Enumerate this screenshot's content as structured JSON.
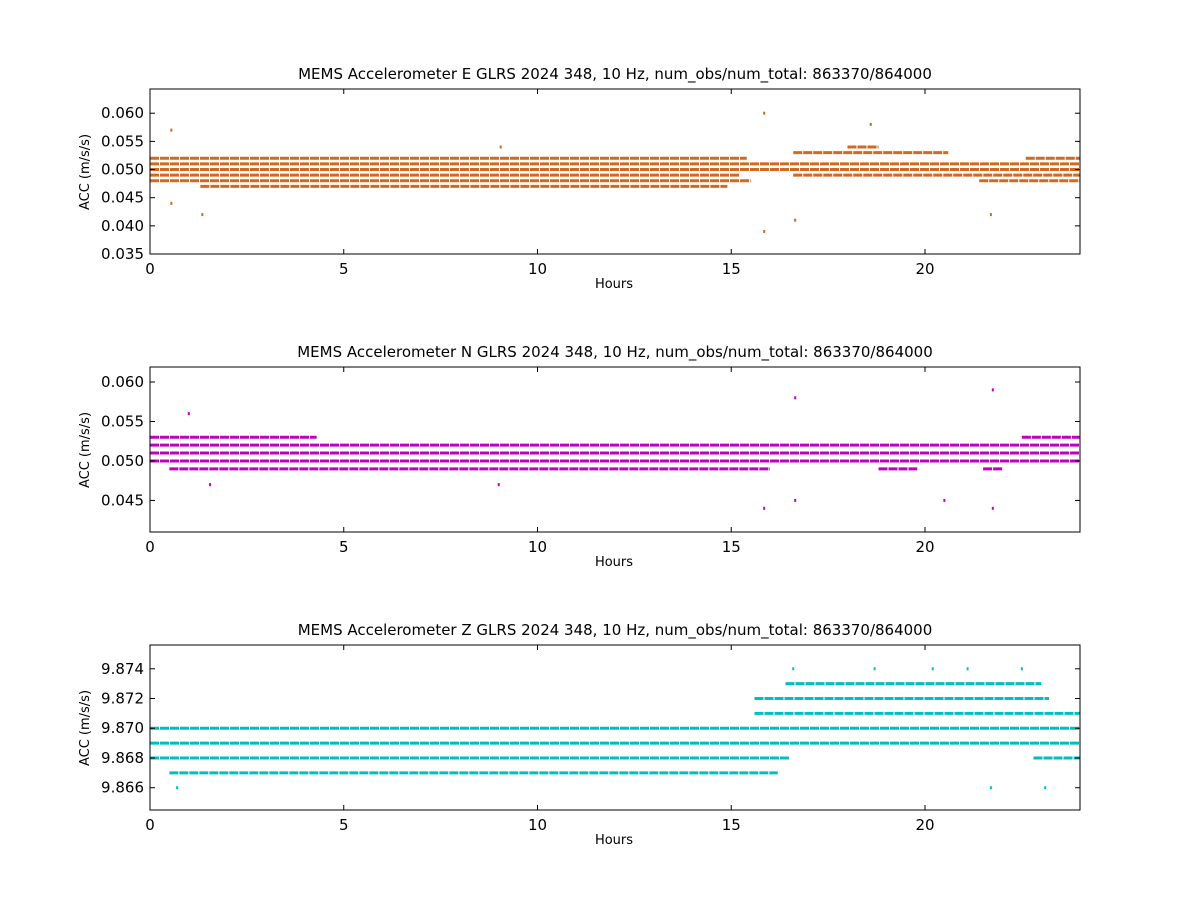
{
  "figure": {
    "background": "#ffffff"
  },
  "chart_data": [
    {
      "type": "scatter",
      "title": "MEMS Accelerometer E GLRS 2024 348, 10 Hz, num_obs/num_total: 863370/864000",
      "xlabel": "Hours",
      "ylabel": "ACC (m/s/s)",
      "xlim": [
        0,
        24
      ],
      "ylim": [
        0.035,
        0.0643
      ],
      "xticks": [
        0,
        5,
        10,
        15,
        20
      ],
      "xtick_labels": [
        "0",
        "5",
        "10",
        "15",
        "20"
      ],
      "yticks": [
        0.035,
        0.04,
        0.045,
        0.05,
        0.055,
        0.06
      ],
      "ytick_labels": [
        "0.035",
        "0.040",
        "0.045",
        "0.050",
        "0.055",
        "0.060"
      ],
      "color": "#d2691e",
      "grid": false,
      "legend": "none",
      "series": [
        {
          "level": 0.052,
          "segments": [
            [
              0.0,
              15.4
            ],
            [
              22.6,
              24.0
            ]
          ]
        },
        {
          "level": 0.051,
          "segments": [
            [
              0.0,
              24.0
            ]
          ]
        },
        {
          "level": 0.05,
          "segments": [
            [
              0.0,
              24.0
            ]
          ]
        },
        {
          "level": 0.049,
          "segments": [
            [
              0.0,
              15.2
            ],
            [
              16.6,
              24.0
            ]
          ]
        },
        {
          "level": 0.048,
          "segments": [
            [
              0.0,
              15.5
            ],
            [
              21.4,
              24.0
            ]
          ]
        },
        {
          "level": 0.047,
          "segments": [
            [
              1.3,
              14.9
            ]
          ]
        },
        {
          "level": 0.053,
          "segments": [
            [
              16.6,
              20.6
            ]
          ]
        },
        {
          "level": 0.054,
          "segments": [
            [
              18.0,
              18.8
            ]
          ]
        }
      ],
      "outliers": [
        {
          "x": 0.55,
          "y": 0.057
        },
        {
          "x": 0.55,
          "y": 0.044
        },
        {
          "x": 1.35,
          "y": 0.042
        },
        {
          "x": 15.85,
          "y": 0.06
        },
        {
          "x": 15.85,
          "y": 0.039
        },
        {
          "x": 16.65,
          "y": 0.041
        },
        {
          "x": 18.6,
          "y": 0.058
        },
        {
          "x": 21.7,
          "y": 0.042
        },
        {
          "x": 9.05,
          "y": 0.054
        }
      ]
    },
    {
      "type": "scatter",
      "title": "MEMS Accelerometer N GLRS 2024 348, 10 Hz, num_obs/num_total: 863370/864000",
      "xlabel": "Hours",
      "ylabel": "ACC (m/s/s)",
      "xlim": [
        0,
        24
      ],
      "ylim": [
        0.041,
        0.0619
      ],
      "xticks": [
        0,
        5,
        10,
        15,
        20
      ],
      "xtick_labels": [
        "0",
        "5",
        "10",
        "15",
        "20"
      ],
      "yticks": [
        0.045,
        0.05,
        0.055,
        0.06
      ],
      "ytick_labels": [
        "0.045",
        "0.050",
        "0.055",
        "0.060"
      ],
      "color": "#c000c0",
      "grid": false,
      "legend": "none",
      "series": [
        {
          "level": 0.053,
          "segments": [
            [
              0.0,
              4.3
            ],
            [
              22.5,
              24.0
            ]
          ]
        },
        {
          "level": 0.052,
          "segments": [
            [
              0.0,
              24.0
            ]
          ]
        },
        {
          "level": 0.051,
          "segments": [
            [
              0.0,
              24.0
            ]
          ]
        },
        {
          "level": 0.05,
          "segments": [
            [
              0.0,
              24.0
            ]
          ]
        },
        {
          "level": 0.049,
          "segments": [
            [
              0.5,
              16.0
            ],
            [
              18.8,
              19.8
            ],
            [
              21.5,
              22.0
            ]
          ]
        }
      ],
      "outliers": [
        {
          "x": 1.0,
          "y": 0.056
        },
        {
          "x": 16.65,
          "y": 0.058
        },
        {
          "x": 21.75,
          "y": 0.059
        },
        {
          "x": 15.85,
          "y": 0.044
        },
        {
          "x": 21.75,
          "y": 0.044
        },
        {
          "x": 16.65,
          "y": 0.045
        },
        {
          "x": 20.5,
          "y": 0.045
        },
        {
          "x": 1.55,
          "y": 0.047
        },
        {
          "x": 9.0,
          "y": 0.047
        }
      ]
    },
    {
      "type": "scatter",
      "title": "MEMS Accelerometer Z GLRS 2024 348, 10 Hz, num_obs/num_total: 863370/864000",
      "xlabel": "Hours",
      "ylabel": "ACC (m/s/s)",
      "xlim": [
        0,
        24
      ],
      "ylim": [
        9.8645,
        9.8756
      ],
      "xticks": [
        0,
        5,
        10,
        15,
        20
      ],
      "xtick_labels": [
        "0",
        "5",
        "10",
        "15",
        "20"
      ],
      "yticks": [
        9.866,
        9.868,
        9.87,
        9.872,
        9.874
      ],
      "ytick_labels": [
        "9.866",
        "9.868",
        "9.870",
        "9.872",
        "9.874"
      ],
      "color": "#00bfbf",
      "grid": false,
      "legend": "none",
      "series": [
        {
          "level": 9.872,
          "segments": [
            [
              15.6,
              23.2
            ]
          ]
        },
        {
          "level": 9.871,
          "segments": [
            [
              15.6,
              24.0
            ]
          ]
        },
        {
          "level": 9.87,
          "segments": [
            [
              0.0,
              24.0
            ]
          ]
        },
        {
          "level": 9.869,
          "segments": [
            [
              0.0,
              24.0
            ]
          ]
        },
        {
          "level": 9.868,
          "segments": [
            [
              0.0,
              16.5
            ],
            [
              22.8,
              24.0
            ]
          ]
        },
        {
          "level": 9.867,
          "segments": [
            [
              0.5,
              16.2
            ]
          ]
        },
        {
          "level": 9.873,
          "segments": [
            [
              16.4,
              23.0
            ]
          ]
        }
      ],
      "outliers": [
        {
          "x": 16.6,
          "y": 9.874
        },
        {
          "x": 18.7,
          "y": 9.874
        },
        {
          "x": 20.2,
          "y": 9.874
        },
        {
          "x": 21.1,
          "y": 9.874
        },
        {
          "x": 22.5,
          "y": 9.874
        },
        {
          "x": 0.7,
          "y": 9.866
        },
        {
          "x": 21.7,
          "y": 9.866
        },
        {
          "x": 23.1,
          "y": 9.866
        }
      ]
    }
  ]
}
